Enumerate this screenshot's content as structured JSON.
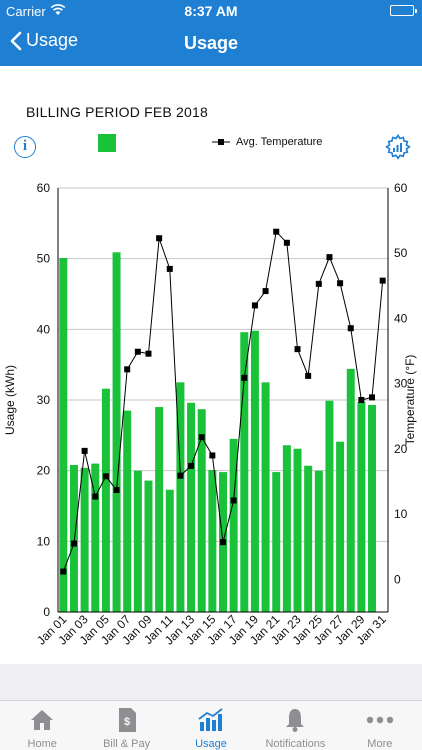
{
  "status": {
    "carrier": "Carrier",
    "time": "8:37 AM"
  },
  "nav": {
    "back_label": "Usage",
    "title": "Usage"
  },
  "period_label": "BILLING PERIOD FEB 2018",
  "colors": {
    "brand": "#1f7fd3",
    "bar": "#1ac23a",
    "line": "#000000"
  },
  "chart_data": {
    "type": "bar",
    "legend": {
      "series_line": "Avg. Temperature"
    },
    "ylabel_left": "Usage (kWh)",
    "ylabel_right": "Temperature (°F)",
    "ylim_left": [
      0,
      60
    ],
    "ylim_right": [
      -5,
      60
    ],
    "yticks_left": [
      0,
      10,
      20,
      30,
      40,
      50,
      60
    ],
    "yticks_right": [
      0,
      10,
      20,
      30,
      40,
      50,
      60
    ],
    "categories": [
      "Jan 01",
      "Jan 02",
      "Jan 03",
      "Jan 04",
      "Jan 05",
      "Jan 06",
      "Jan 07",
      "Jan 08",
      "Jan 09",
      "Jan 10",
      "Jan 11",
      "Jan 12",
      "Jan 13",
      "Jan 14",
      "Jan 15",
      "Jan 16",
      "Jan 17",
      "Jan 18",
      "Jan 19",
      "Jan 20",
      "Jan 21",
      "Jan 22",
      "Jan 23",
      "Jan 24",
      "Jan 25",
      "Jan 26",
      "Jan 27",
      "Jan 28",
      "Jan 29",
      "Jan 30",
      "Jan 31"
    ],
    "xtick_labels": [
      "Jan 01",
      "Jan 03",
      "Jan 05",
      "Jan 07",
      "Jan 09",
      "Jan 11",
      "Jan 13",
      "Jan 15",
      "Jan 17",
      "Jan 19",
      "Jan 21",
      "Jan 23",
      "Jan 25",
      "Jan 27",
      "Jan 29",
      "Jan 31"
    ],
    "series": [
      {
        "values": [
          50.1,
          20.8,
          20.4,
          21.0,
          31.6,
          50.9,
          28.5,
          20.0,
          18.6,
          29.0,
          17.3,
          32.5,
          29.6,
          28.7,
          20.1,
          19.8,
          24.5,
          39.6,
          39.8,
          32.5,
          19.8,
          23.6,
          23.1,
          20.7,
          20.0,
          29.9,
          24.1,
          34.4,
          29.7,
          29.3,
          0
        ]
      },
      {
        "name": "Avg. Temperature",
        "values": [
          1.2,
          5.5,
          19.7,
          12.7,
          15.8,
          13.7,
          32.2,
          34.9,
          34.6,
          52.3,
          47.6,
          15.9,
          17.4,
          21.8,
          19.0,
          5.7,
          12.1,
          30.9,
          42.0,
          44.2,
          53.3,
          51.6,
          35.3,
          31.2,
          45.3,
          49.4,
          45.4,
          38.5,
          27.5,
          27.9,
          45.8
        ]
      }
    ]
  },
  "tabs": [
    {
      "label": "Home",
      "icon": "home-icon"
    },
    {
      "label": "Bill & Pay",
      "icon": "bill-icon"
    },
    {
      "label": "Usage",
      "icon": "usage-icon"
    },
    {
      "label": "Notifications",
      "icon": "bell-icon"
    },
    {
      "label": "More",
      "icon": "more-icon"
    }
  ]
}
